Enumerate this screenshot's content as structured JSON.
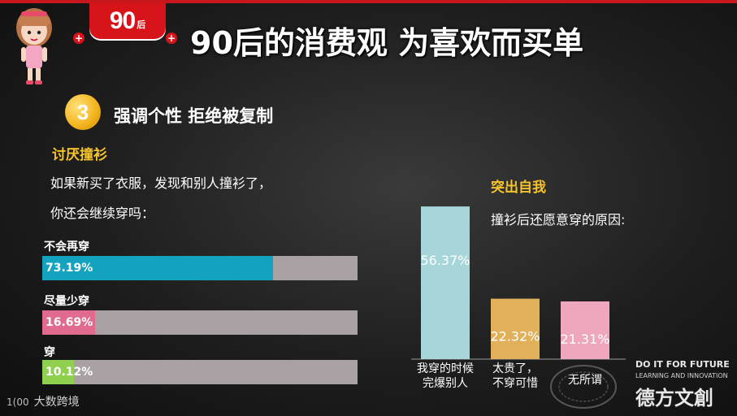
{
  "header": {
    "badge_number": "90",
    "badge_suffix": "后",
    "title": "90后的消费观 为喜欢而买单"
  },
  "section": {
    "number": "3",
    "title": "强调个性 拒绝被复制"
  },
  "left": {
    "subtitle": "讨厌撞衫",
    "question_line1": "如果新买了衣服，发现和别人撞衫了，",
    "question_line2": "你还会继续穿吗："
  },
  "right": {
    "subtitle": "突出自我",
    "question": "撞衫后还愿意穿的原因:"
  },
  "colors": {
    "accent_red": "#d7141a",
    "gold": "#f5c32c",
    "bar_teal": "#14a3bf",
    "bar_pink": "#e06b8e",
    "bar_green": "#8fd14f",
    "track_gray": "#a9a1a3",
    "col_teal": "#a6d6da",
    "col_gold": "#e0b05a",
    "col_pink": "#eea7bd"
  },
  "chart_data": [
    {
      "type": "bar",
      "orientation": "horizontal",
      "title": "",
      "categories": [
        "不会再穿",
        "尽量少穿",
        "穿"
      ],
      "values": [
        73.19,
        16.69,
        10.12
      ],
      "value_labels": [
        "73.19%",
        "16.69%",
        "10.12%"
      ],
      "xlim": [
        0,
        100
      ]
    },
    {
      "type": "bar",
      "orientation": "vertical",
      "title": "",
      "categories": [
        [
          "我穿的时候",
          "完爆别人"
        ],
        [
          "太贵了，",
          "不穿可惜"
        ],
        [
          "无所谓"
        ]
      ],
      "values": [
        56.37,
        22.32,
        21.31
      ],
      "value_labels": [
        "56.37%",
        "22.32%",
        "21.31%"
      ],
      "ylim": [
        0,
        60
      ]
    }
  ],
  "footer": {
    "brand_left": "大数跨境",
    "brand_right_top": "DO IT FOR FUTURE",
    "brand_right_mid": "LEARNING AND INNOVATION",
    "brand_right_big": "德方文創"
  }
}
